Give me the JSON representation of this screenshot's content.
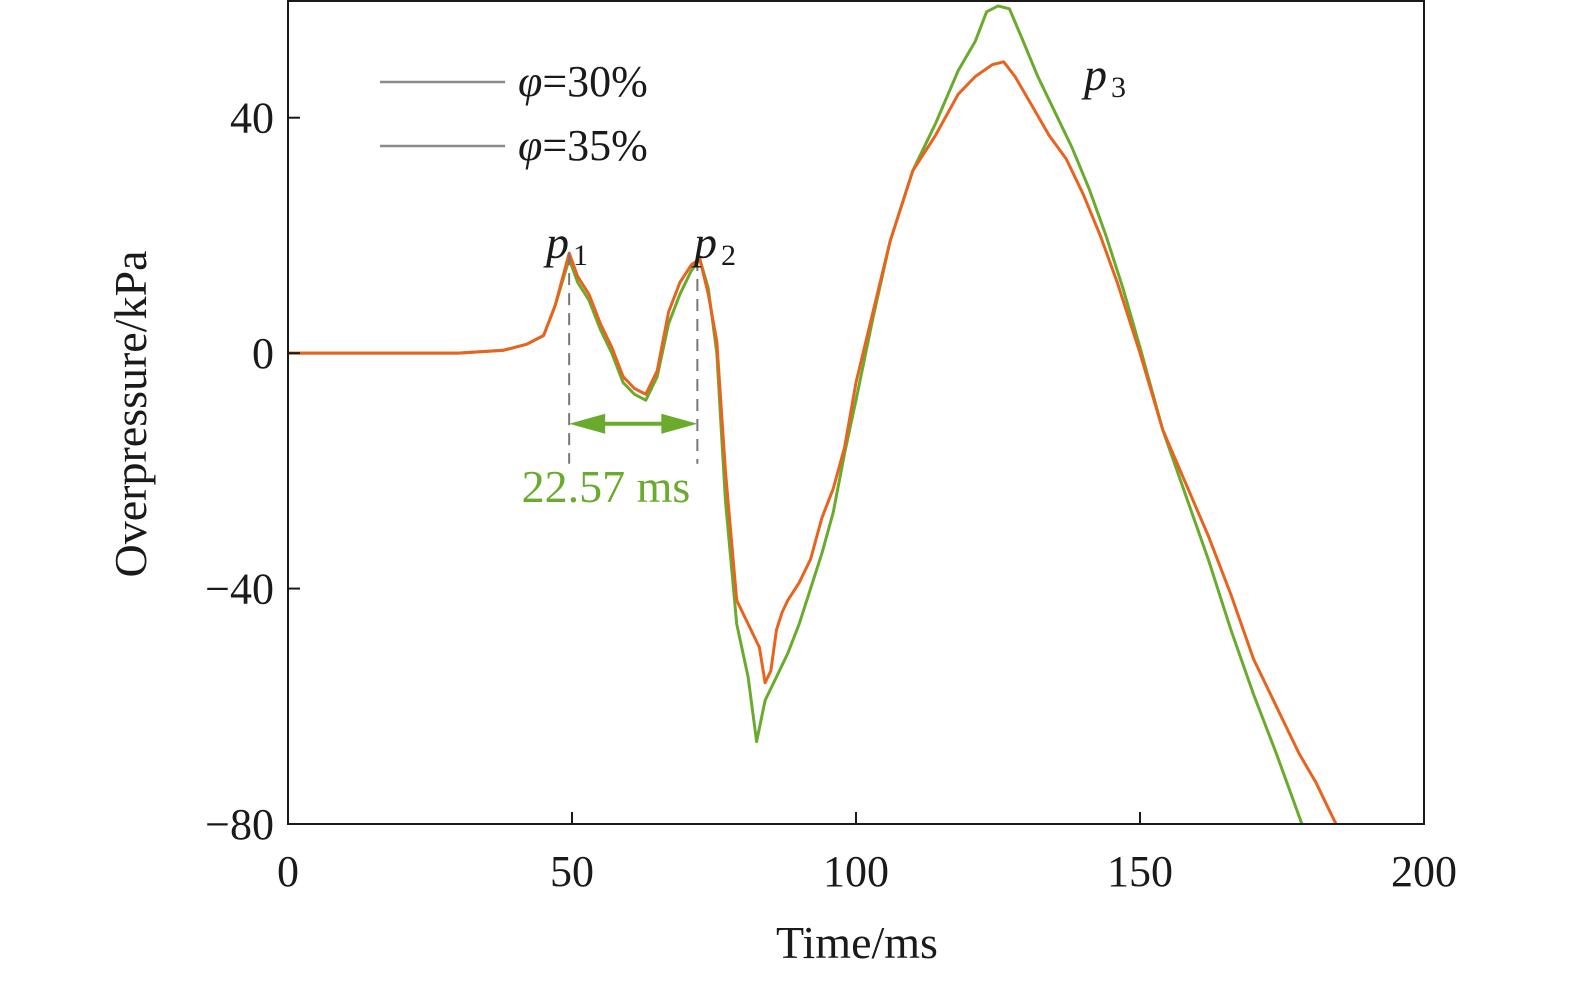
{
  "chart_data": {
    "type": "line",
    "xlabel": "Time/ms",
    "ylabel": "Overpressure/kPa",
    "xlim": [
      0,
      200
    ],
    "ylim": [
      -80,
      60
    ],
    "xticks": [
      0,
      50,
      100,
      150,
      200
    ],
    "yticks": [
      -80,
      -40,
      0,
      40
    ],
    "xtick_labels": [
      "0",
      "50",
      "100",
      "150",
      "200"
    ],
    "ytick_labels": [
      "−80",
      "−40",
      "0",
      "40"
    ],
    "grid": false,
    "legend_position": "top-left",
    "colors": {
      "phi30": "#e8641e",
      "phi35": "#6aab2e",
      "legend_line": "#8a8a8a",
      "annotation": "#6aab2e",
      "guide": "#777777",
      "axis": "#1a1a1a"
    },
    "series": [
      {
        "name": "φ=30%",
        "legend_symbol": "φ",
        "legend_value": "=30%",
        "x": [
          0,
          10,
          20,
          30,
          38,
          42,
          45,
          47,
          49.5,
          51,
          53,
          55,
          57,
          59,
          61,
          63,
          65,
          67,
          69,
          71,
          72.5,
          74,
          75.5,
          77,
          79,
          81,
          83,
          84,
          85,
          86,
          87,
          88,
          90,
          92,
          94,
          96,
          98,
          100,
          103,
          106,
          110,
          114,
          118,
          121,
          124,
          126,
          128,
          131,
          134,
          137,
          140,
          143,
          146,
          150,
          154,
          158,
          162,
          166,
          170,
          174,
          178,
          181,
          183,
          184.5
        ],
        "y": [
          0,
          0,
          0,
          0,
          0.5,
          1.5,
          3,
          8,
          17,
          13,
          10,
          5,
          1,
          -4,
          -6,
          -7,
          -3,
          7,
          12,
          15,
          16,
          10,
          2,
          -20,
          -42,
          -46,
          -50,
          -56,
          -54,
          -47,
          -44,
          -42,
          -39,
          -35,
          -28,
          -23,
          -16,
          -5,
          7,
          19,
          31,
          37,
          44,
          47,
          49,
          49.5,
          47,
          42,
          37,
          33,
          27,
          20,
          12,
          0,
          -13,
          -22,
          -31,
          -41,
          -52,
          -60,
          -68,
          -73,
          -77,
          -80
        ]
      },
      {
        "name": "φ=35%",
        "legend_symbol": "φ",
        "legend_value": "=35%",
        "x": [
          0,
          10,
          20,
          30,
          38,
          42,
          45,
          47,
          49.5,
          51,
          53,
          55,
          57,
          59,
          61,
          63,
          65,
          67,
          69,
          71,
          72.5,
          74,
          75.5,
          77,
          79,
          81,
          82.5,
          84,
          86,
          88,
          90,
          92,
          94,
          96,
          98,
          100,
          103,
          106,
          110,
          114,
          118,
          121,
          123,
          125,
          127,
          129,
          132,
          135,
          138,
          141,
          144,
          147,
          150,
          154,
          158,
          162,
          166,
          170,
          174,
          177,
          178.5
        ],
        "y": [
          0,
          0,
          0,
          0,
          0.5,
          1.5,
          3,
          8,
          16,
          12,
          9,
          4,
          0,
          -5,
          -7,
          -8,
          -4,
          5,
          10,
          14,
          16,
          11,
          0,
          -25,
          -46,
          -55,
          -66,
          -59,
          -55,
          -51,
          -46,
          -40,
          -34,
          -27,
          -17,
          -8,
          6,
          19,
          31,
          39,
          48,
          53,
          58,
          59,
          58.5,
          54,
          47,
          41,
          35,
          28,
          20,
          11,
          1,
          -13,
          -24,
          -35,
          -47,
          -58,
          -68,
          -76,
          -80
        ]
      }
    ],
    "annotations": [
      {
        "label": "p",
        "subscript": "1",
        "x": 49.5,
        "y": 17
      },
      {
        "label": "p",
        "subscript": "2",
        "x": 72.1,
        "y": 16
      },
      {
        "label": "p",
        "subscript": "3",
        "x": 143,
        "y": 52
      },
      {
        "type": "interval",
        "x1": 49.5,
        "x2": 72.07,
        "y": -12,
        "label": "22.57 ms"
      }
    ]
  }
}
